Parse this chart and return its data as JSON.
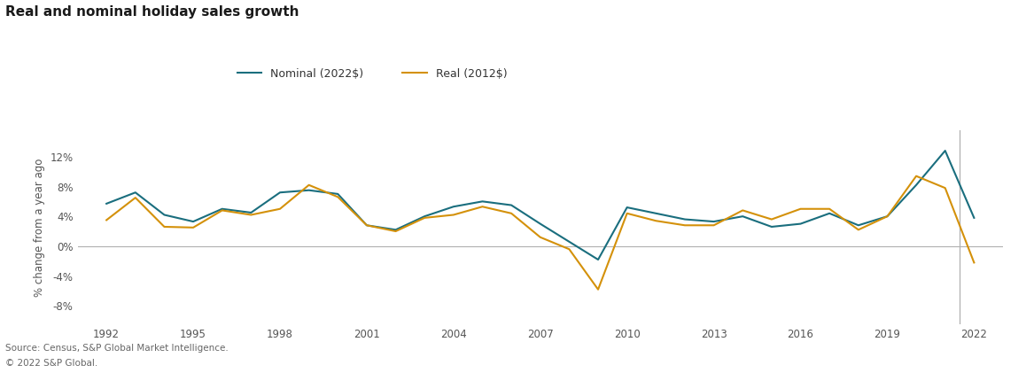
{
  "title": "Real and nominal holiday sales growth",
  "ylabel": "% change from a year ago",
  "source_line1": "Source: Census, S&P Global Market Intelligence.",
  "source_line2": "© 2022 S&P Global.",
  "nominal_color": "#1a6e7e",
  "real_color": "#d4910a",
  "vline_x": 2021.5,
  "vline_color": "#b0b0b0",
  "legend_entries": [
    "Nominal (2022$)",
    "Real (2012$)"
  ],
  "background_color": "#ffffff",
  "zero_line_color": "#b0b0b0",
  "yticks": [
    -0.08,
    -0.04,
    0.0,
    0.04,
    0.08,
    0.12
  ],
  "ytick_labels": [
    "-8%",
    "-4%",
    "0%",
    "4%",
    "8%",
    "12%"
  ],
  "xtick_years": [
    1992,
    1995,
    1998,
    2001,
    2004,
    2007,
    2010,
    2013,
    2016,
    2019,
    2022
  ],
  "xlim": [
    1991.0,
    2023.0
  ],
  "ylim": [
    -0.105,
    0.155
  ],
  "years": [
    1992,
    1993,
    1994,
    1995,
    1996,
    1997,
    1998,
    1999,
    2000,
    2001,
    2002,
    2003,
    2004,
    2005,
    2006,
    2007,
    2008,
    2009,
    2010,
    2011,
    2012,
    2013,
    2014,
    2015,
    2016,
    2017,
    2018,
    2019,
    2020,
    2021,
    2022
  ],
  "nominal": [
    0.057,
    0.072,
    0.042,
    0.033,
    0.05,
    0.045,
    0.072,
    0.075,
    0.07,
    0.028,
    0.022,
    0.04,
    0.053,
    0.06,
    0.055,
    0.03,
    0.006,
    -0.018,
    0.052,
    0.044,
    0.036,
    0.033,
    0.04,
    0.026,
    0.03,
    0.044,
    0.028,
    0.04,
    0.082,
    0.128,
    0.038
  ],
  "real": [
    0.035,
    0.065,
    0.026,
    0.025,
    0.048,
    0.042,
    0.05,
    0.082,
    0.066,
    0.028,
    0.02,
    0.038,
    0.042,
    0.053,
    0.044,
    0.012,
    -0.004,
    -0.058,
    0.044,
    0.034,
    0.028,
    0.028,
    0.048,
    0.036,
    0.05,
    0.05,
    0.022,
    0.04,
    0.094,
    0.078,
    -0.022
  ]
}
